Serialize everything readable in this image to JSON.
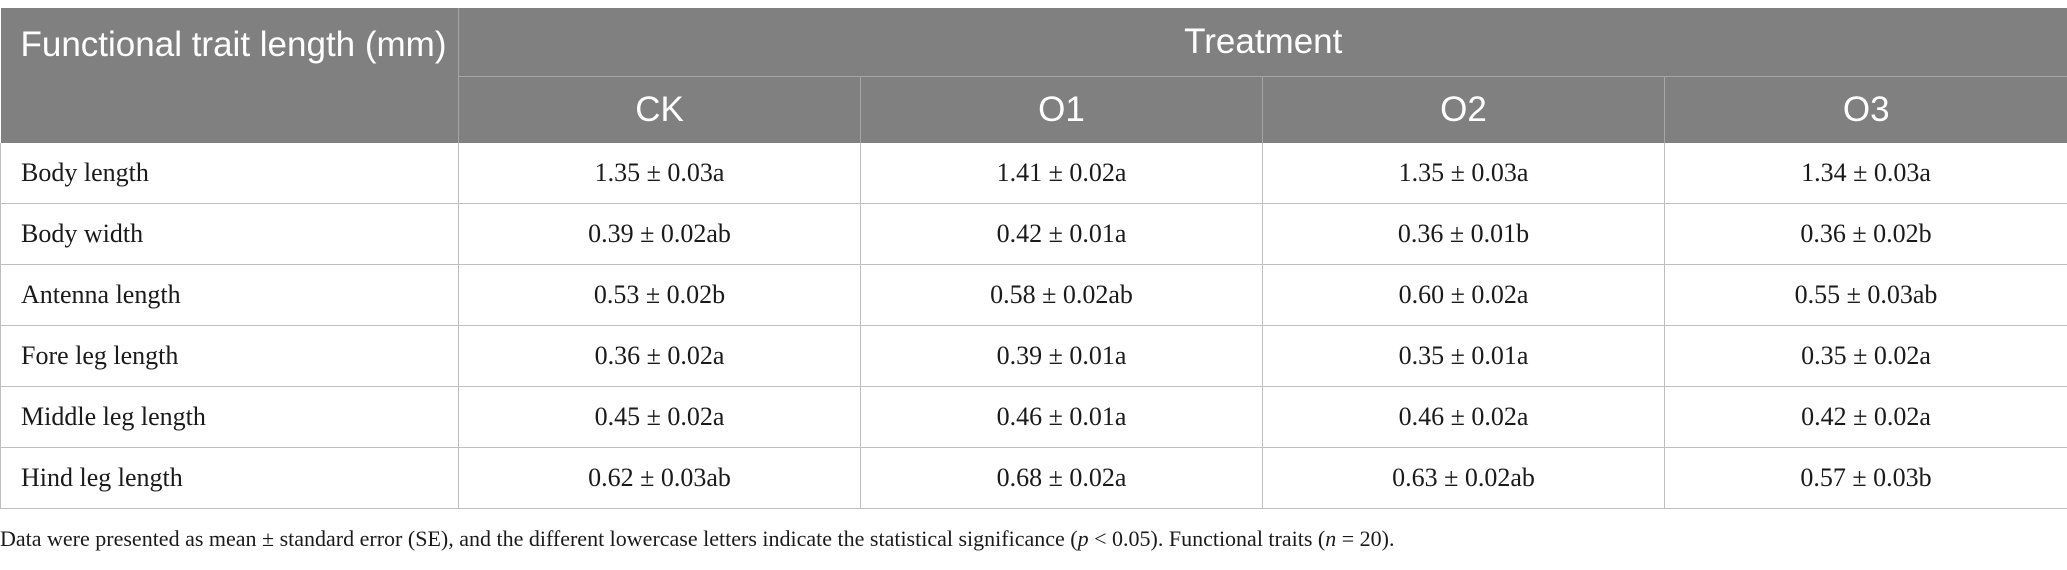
{
  "header": {
    "corner_label": "Functional trait length (mm)",
    "group_label": "Treatment",
    "columns": [
      "CK",
      "O1",
      "O2",
      "O3"
    ]
  },
  "rows": [
    {
      "label": "Body length",
      "values": [
        "1.35 ± 0.03a",
        "1.41 ± 0.02a",
        "1.35 ± 0.03a",
        "1.34 ± 0.03a"
      ]
    },
    {
      "label": "Body width",
      "values": [
        "0.39 ± 0.02ab",
        "0.42 ± 0.01a",
        "0.36 ± 0.01b",
        "0.36 ± 0.02b"
      ]
    },
    {
      "label": "Antenna length",
      "values": [
        "0.53 ± 0.02b",
        "0.58 ± 0.02ab",
        "0.60 ± 0.02a",
        "0.55 ± 0.03ab"
      ]
    },
    {
      "label": "Fore leg length",
      "values": [
        "0.36 ± 0.02a",
        "0.39 ± 0.01a",
        "0.35 ± 0.01a",
        "0.35 ± 0.02a"
      ]
    },
    {
      "label": "Middle leg length",
      "values": [
        "0.45 ± 0.02a",
        "0.46 ± 0.01a",
        "0.46 ± 0.02a",
        "0.42 ± 0.02a"
      ]
    },
    {
      "label": "Hind leg length",
      "values": [
        "0.62 ± 0.03ab",
        "0.68 ± 0.02a",
        "0.63 ± 0.02ab",
        "0.57 ± 0.03b"
      ]
    }
  ],
  "footnote": {
    "part1": "Data were presented as mean ± standard error (SE), and the different lowercase letters indicate the statistical significance (",
    "p_symbol": "p",
    "part2": " < 0.05). Functional traits (",
    "n_symbol": "n",
    "part3": " = 20)."
  },
  "colors": {
    "header_bg": "#808080",
    "header_text": "#ffffff",
    "grid_line": "#bfbfbf"
  }
}
